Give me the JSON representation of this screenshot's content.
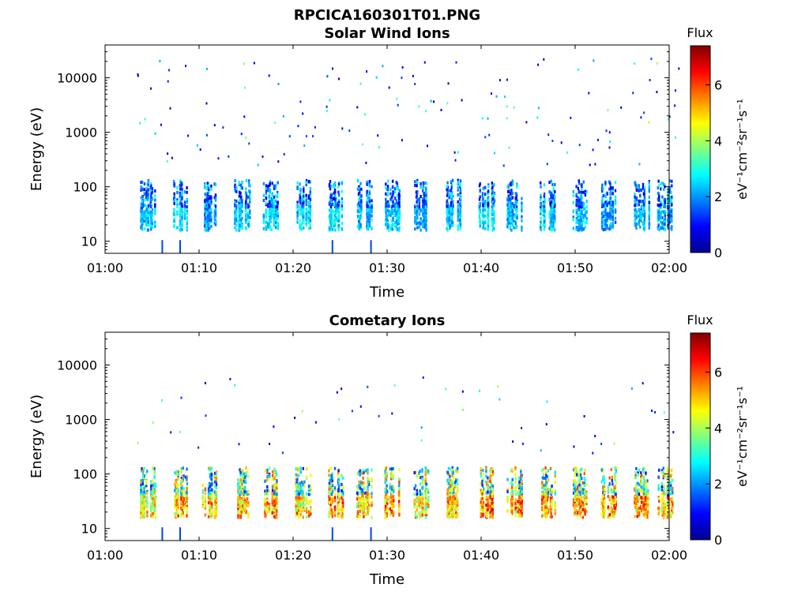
{
  "figure": {
    "title": "RPCICA160301T01.PNG"
  },
  "colormap": [
    "#00008f",
    "#0000ff",
    "#0080ff",
    "#00ffff",
    "#80ff80",
    "#ffff00",
    "#ff8000",
    "#ff0000",
    "#800000"
  ],
  "chart_data": [
    {
      "type": "heatmap",
      "title": "Solar Wind Ions",
      "xlabel": "Time",
      "ylabel": "Energy (eV)",
      "xlim": [
        "01:00",
        "02:00"
      ],
      "ylim": [
        6,
        40000
      ],
      "yscale": "log",
      "x_ticks": [
        "01:00",
        "01:10",
        "01:20",
        "01:30",
        "01:40",
        "01:50",
        "02:00"
      ],
      "y_ticks": [
        "10",
        "100",
        "1000",
        "10000"
      ],
      "colorbar": {
        "title": "Flux",
        "label": "eV⁻¹cm⁻²sr⁻¹s⁻¹",
        "range": [
          0,
          7.4
        ],
        "ticks": [
          "0",
          "2",
          "4",
          "6"
        ]
      },
      "bursts": [
        {
          "t": 4.5,
          "low": 1.7,
          "high": 2.9
        },
        {
          "t": 8.0,
          "low": 2.1,
          "high": 3.2
        },
        {
          "t": 11.0,
          "low": 1.4,
          "high": 2.7
        },
        {
          "t": 14.5,
          "low": 1.8,
          "high": 3.0
        },
        {
          "t": 17.5,
          "low": 1.8,
          "high": 3.1
        },
        {
          "t": 21.0,
          "low": 1.6,
          "high": 3.3
        },
        {
          "t": 24.5,
          "low": 2.0,
          "high": 3.2
        },
        {
          "t": 27.5,
          "low": 1.5,
          "high": 3.0
        },
        {
          "t": 30.5,
          "low": 1.8,
          "high": 3.0
        },
        {
          "t": 33.5,
          "low": 1.6,
          "high": 2.6
        },
        {
          "t": 37.0,
          "low": 1.7,
          "high": 3.1
        },
        {
          "t": 40.5,
          "low": 2.1,
          "high": 3.2
        },
        {
          "t": 43.5,
          "low": 1.6,
          "high": 2.9
        },
        {
          "t": 47.0,
          "low": 1.7,
          "high": 3.1
        },
        {
          "t": 50.5,
          "low": 1.6,
          "high": 3.0
        },
        {
          "t": 53.5,
          "low": 1.4,
          "high": 2.7
        },
        {
          "t": 57.0,
          "low": 1.6,
          "high": 3.0
        },
        {
          "t": 59.5,
          "low": 1.4,
          "high": 2.7
        }
      ]
    },
    {
      "type": "heatmap",
      "title": "Cometary Ions",
      "xlabel": "Time",
      "ylabel": "Energy (eV)",
      "xlim": [
        "01:00",
        "02:00"
      ],
      "ylim": [
        6,
        40000
      ],
      "yscale": "log",
      "x_ticks": [
        "01:00",
        "01:10",
        "01:20",
        "01:30",
        "01:40",
        "01:50",
        "02:00"
      ],
      "y_ticks": [
        "10",
        "100",
        "1000",
        "10000"
      ],
      "colorbar": {
        "title": "Flux",
        "label": "eV⁻¹cm⁻²sr⁻¹s⁻¹",
        "range": [
          0,
          7.4
        ],
        "ticks": [
          "0",
          "2",
          "4",
          "6"
        ]
      },
      "bursts": [
        {
          "t": 4.5,
          "low": 5.5,
          "high": 6.0
        },
        {
          "t": 8.0,
          "low": 6.0,
          "high": 7.0
        },
        {
          "t": 11.0,
          "low": 5.8,
          "high": 6.5
        },
        {
          "t": 14.5,
          "low": 6.0,
          "high": 6.8
        },
        {
          "t": 17.5,
          "low": 6.0,
          "high": 7.0
        },
        {
          "t": 21.0,
          "low": 5.5,
          "high": 6.6
        },
        {
          "t": 24.5,
          "low": 6.0,
          "high": 7.0
        },
        {
          "t": 27.5,
          "low": 5.8,
          "high": 6.5
        },
        {
          "t": 30.5,
          "low": 6.0,
          "high": 7.0
        },
        {
          "t": 33.5,
          "low": 5.5,
          "high": 6.4
        },
        {
          "t": 37.0,
          "low": 5.8,
          "high": 6.6
        },
        {
          "t": 40.5,
          "low": 6.2,
          "high": 7.2
        },
        {
          "t": 43.5,
          "low": 6.0,
          "high": 7.0
        },
        {
          "t": 47.0,
          "low": 6.0,
          "high": 6.9
        },
        {
          "t": 50.5,
          "low": 6.0,
          "high": 6.8
        },
        {
          "t": 53.5,
          "low": 6.0,
          "high": 7.0
        },
        {
          "t": 57.0,
          "low": 6.0,
          "high": 7.1
        },
        {
          "t": 59.5,
          "low": 5.8,
          "high": 6.8
        }
      ]
    }
  ]
}
